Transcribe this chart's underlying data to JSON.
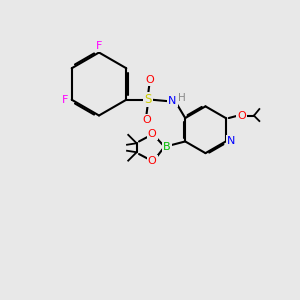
{
  "bg_color": "#e8e8e8",
  "bond_color": "#000000",
  "atom_colors": {
    "F": "#ff00ff",
    "S": "#cccc00",
    "O": "#ff0000",
    "N": "#0000ff",
    "B": "#00bb00",
    "H": "#888888",
    "C": "#000000"
  }
}
